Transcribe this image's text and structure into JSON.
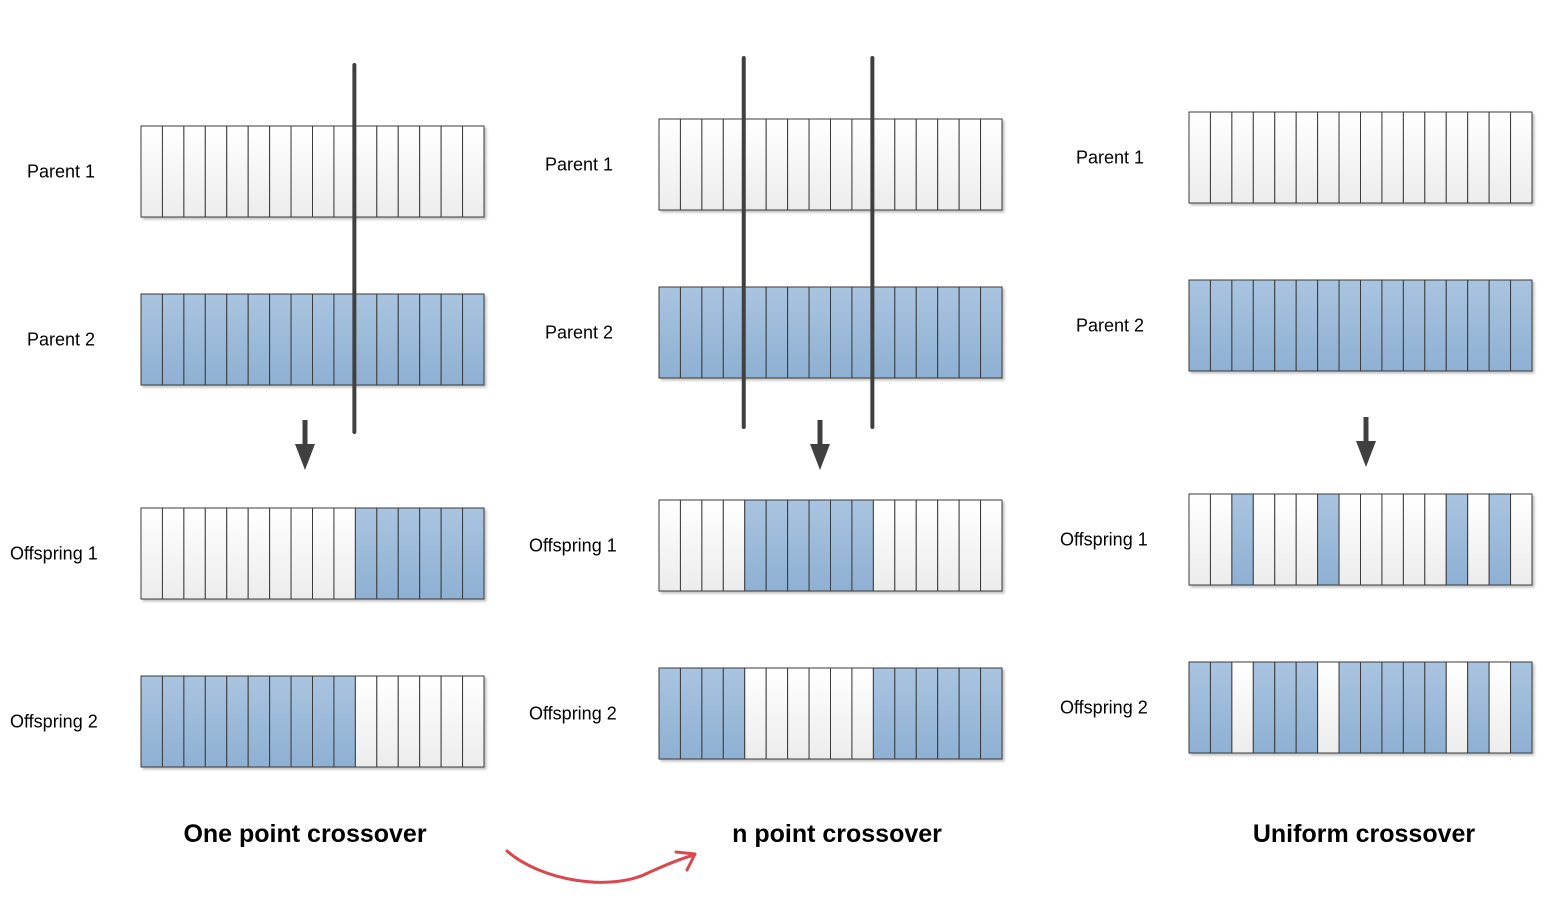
{
  "panels": [
    {
      "title": "One point crossover",
      "parent1": {
        "label": "Parent 1",
        "genes": "WWWWWWWWWWWWWWWW"
      },
      "parent2": {
        "label": "Parent 2",
        "genes": "BBBBBBBBBBBBBBBB"
      },
      "offspring1": {
        "label": "Offspring 1",
        "genes": "WWWWWWWWWWBBBBBB"
      },
      "offspring2": {
        "label": "Offspring 2",
        "genes": "BBBBBBBBBBWWWWWW"
      },
      "crossover_points": [
        10
      ]
    },
    {
      "title": "n point crossover",
      "parent1": {
        "label": "Parent 1",
        "genes": "WWWWWWWWWWWWWWWW"
      },
      "parent2": {
        "label": "Parent 2",
        "genes": "BBBBBBBBBBBBBBBB"
      },
      "offspring1": {
        "label": "Offspring 1",
        "genes": "WWWWBBBBBBWWWWWW"
      },
      "offspring2": {
        "label": "Offspring 2",
        "genes": "BBBBWWWWWWBBBBBB"
      },
      "crossover_points": [
        4,
        10
      ]
    },
    {
      "title": "Uniform crossover",
      "parent1": {
        "label": "Parent 1",
        "genes": "WWWWWWWWWWWWWWWW"
      },
      "parent2": {
        "label": "Parent 2",
        "genes": "BBBBBBBBBBBBBBBB"
      },
      "offspring1": {
        "label": "Offspring 1",
        "genes": "WWBWWWBWWWWWBWBW"
      },
      "offspring2": {
        "label": "Offspring 2",
        "genes": "BBWBBBWBBBBBWBWB"
      },
      "crossover_points": []
    }
  ],
  "colors": {
    "gene_white": "#f4f4f4",
    "gene_blue": "#95b6d6",
    "gene_border": "#3a3a3a",
    "cut_line": "#404040",
    "arrow": "#404040",
    "annotation": "#d9474f"
  }
}
